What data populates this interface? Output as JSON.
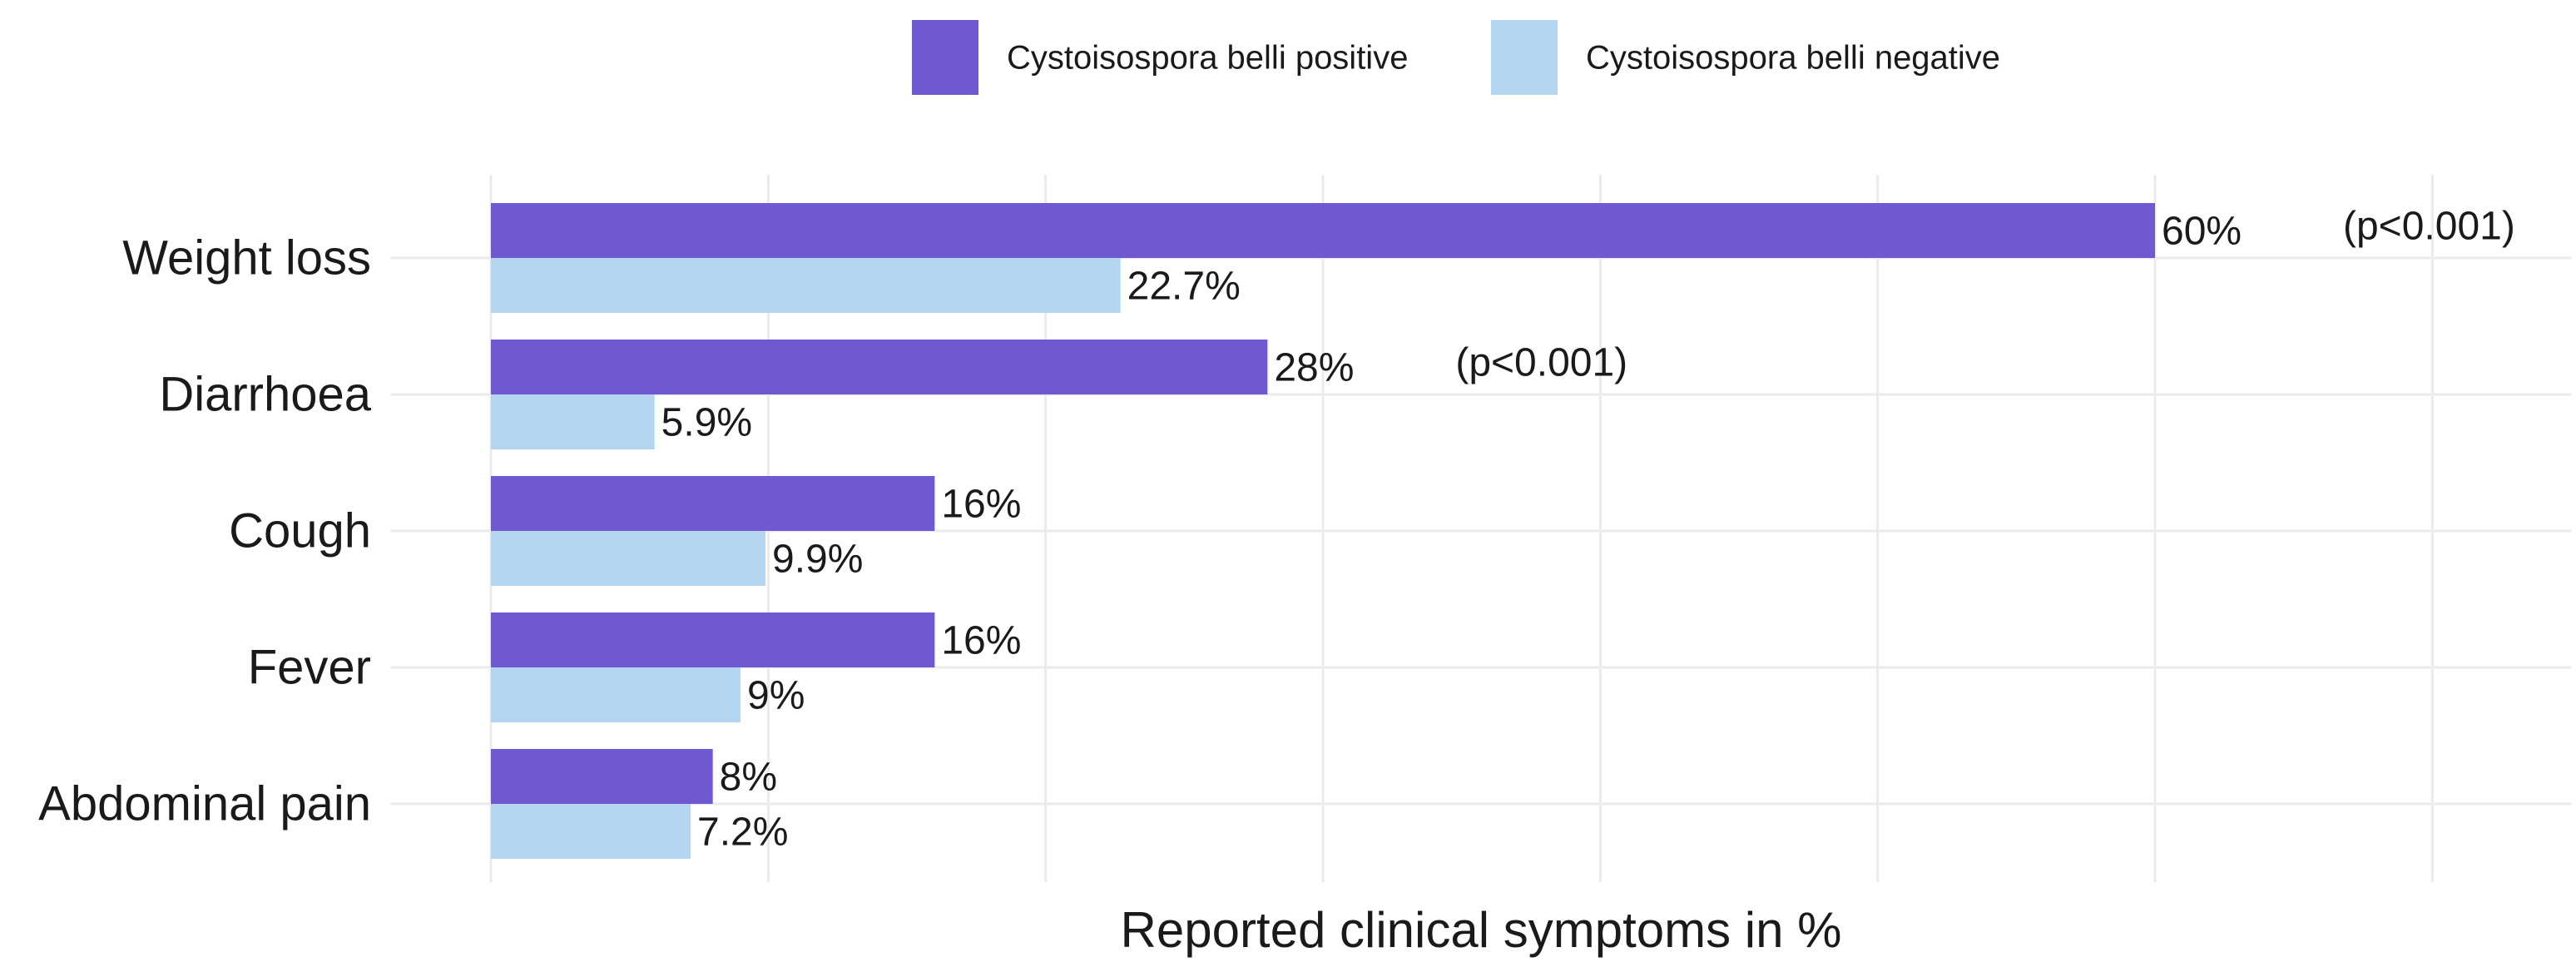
{
  "chart_data": {
    "type": "bar",
    "orientation": "horizontal",
    "x_label": "Reported clinical symptoms in %",
    "categories": [
      "Weight loss",
      "Diarrhoea",
      "Cough",
      "Fever",
      "Abdominal pain"
    ],
    "series": [
      {
        "name": "Cystoisospora belli positive",
        "color": "#6f58d1",
        "values": [
          60,
          28,
          16,
          16,
          8
        ],
        "value_labels": [
          "60%",
          "28%",
          "16%",
          "16%",
          "8%"
        ]
      },
      {
        "name": "Cystoisospora belli negative",
        "color": "#b3d5f0",
        "values": [
          22.7,
          5.9,
          9.9,
          9,
          7.2
        ],
        "value_labels": [
          "22.7%",
          "5.9%",
          "9.9%",
          "9%",
          "7.2%"
        ]
      }
    ],
    "annotations": [
      {
        "text": "(p<0.001)",
        "category": "Weight loss"
      },
      {
        "text": "(p<0.001)",
        "category": "Diarrhoea"
      }
    ],
    "xlim": [
      -3.6,
      75
    ],
    "xticks": [
      0,
      10,
      20,
      30,
      40,
      50,
      60,
      70
    ],
    "grid": true,
    "legend": "top"
  }
}
